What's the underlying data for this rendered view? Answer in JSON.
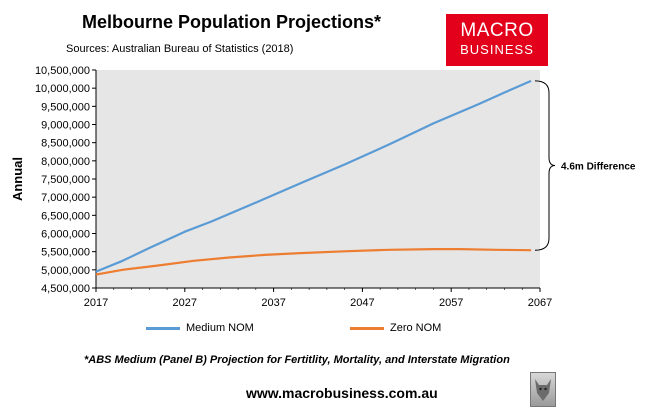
{
  "header": {
    "title": "Melbourne Population Projections*",
    "subtitle": "Sources: Australian Bureau of Statistics (2018)"
  },
  "logo": {
    "line1": "MACRO",
    "line2": "BUSINESS"
  },
  "footer": {
    "footnote": "*ABS Medium (Panel B) Projection for Fertitlity, Mortality, and Interstate Migration",
    "url": "www.macrobusiness.com.au"
  },
  "colors": {
    "medium": "#5b9bd5",
    "zero": "#ed7d31",
    "plot_bg": "#e6e6e6",
    "logo_bg": "#e2001a"
  },
  "chart_data": {
    "type": "line",
    "ylabel": "Annual",
    "xlim": [
      2017,
      2067
    ],
    "ylim": [
      4500000,
      10500000
    ],
    "xticks": [
      2017,
      2027,
      2037,
      2047,
      2057,
      2067
    ],
    "xtick_labels": [
      "2017",
      "2027",
      "2037",
      "2047",
      "2057",
      "2067"
    ],
    "yticks": [
      4500000,
      5000000,
      5500000,
      6000000,
      6500000,
      7000000,
      7500000,
      8000000,
      8500000,
      9000000,
      9500000,
      10000000,
      10500000
    ],
    "ytick_labels": [
      "4,500,000",
      "5,000,000",
      "5,500,000",
      "6,000,000",
      "6,500,000",
      "7,000,000",
      "7,500,000",
      "8,000,000",
      "8,500,000",
      "9,000,000",
      "9,500,000",
      "10,000,000",
      "10,500,000"
    ],
    "grid": false,
    "legend": "bottom",
    "series": [
      {
        "name": "Medium NOM",
        "color": "#5b9bd5",
        "x": [
          2017,
          2020,
          2023,
          2027,
          2030,
          2035,
          2040,
          2045,
          2050,
          2055,
          2060,
          2063,
          2066
        ],
        "y": [
          4950000,
          5250000,
          5600000,
          6050000,
          6330000,
          6850000,
          7380000,
          7900000,
          8450000,
          9030000,
          9550000,
          9880000,
          10200000
        ]
      },
      {
        "name": "Zero NOM",
        "color": "#ed7d31",
        "x": [
          2017,
          2020,
          2024,
          2028,
          2032,
          2036,
          2040,
          2045,
          2050,
          2055,
          2058,
          2062,
          2066
        ],
        "y": [
          4870000,
          5000000,
          5120000,
          5250000,
          5340000,
          5410000,
          5460000,
          5510000,
          5550000,
          5570000,
          5570000,
          5550000,
          5540000
        ]
      }
    ],
    "annotation": {
      "text": "4.6m Difference",
      "from": 5540000,
      "to": 10200000
    }
  }
}
